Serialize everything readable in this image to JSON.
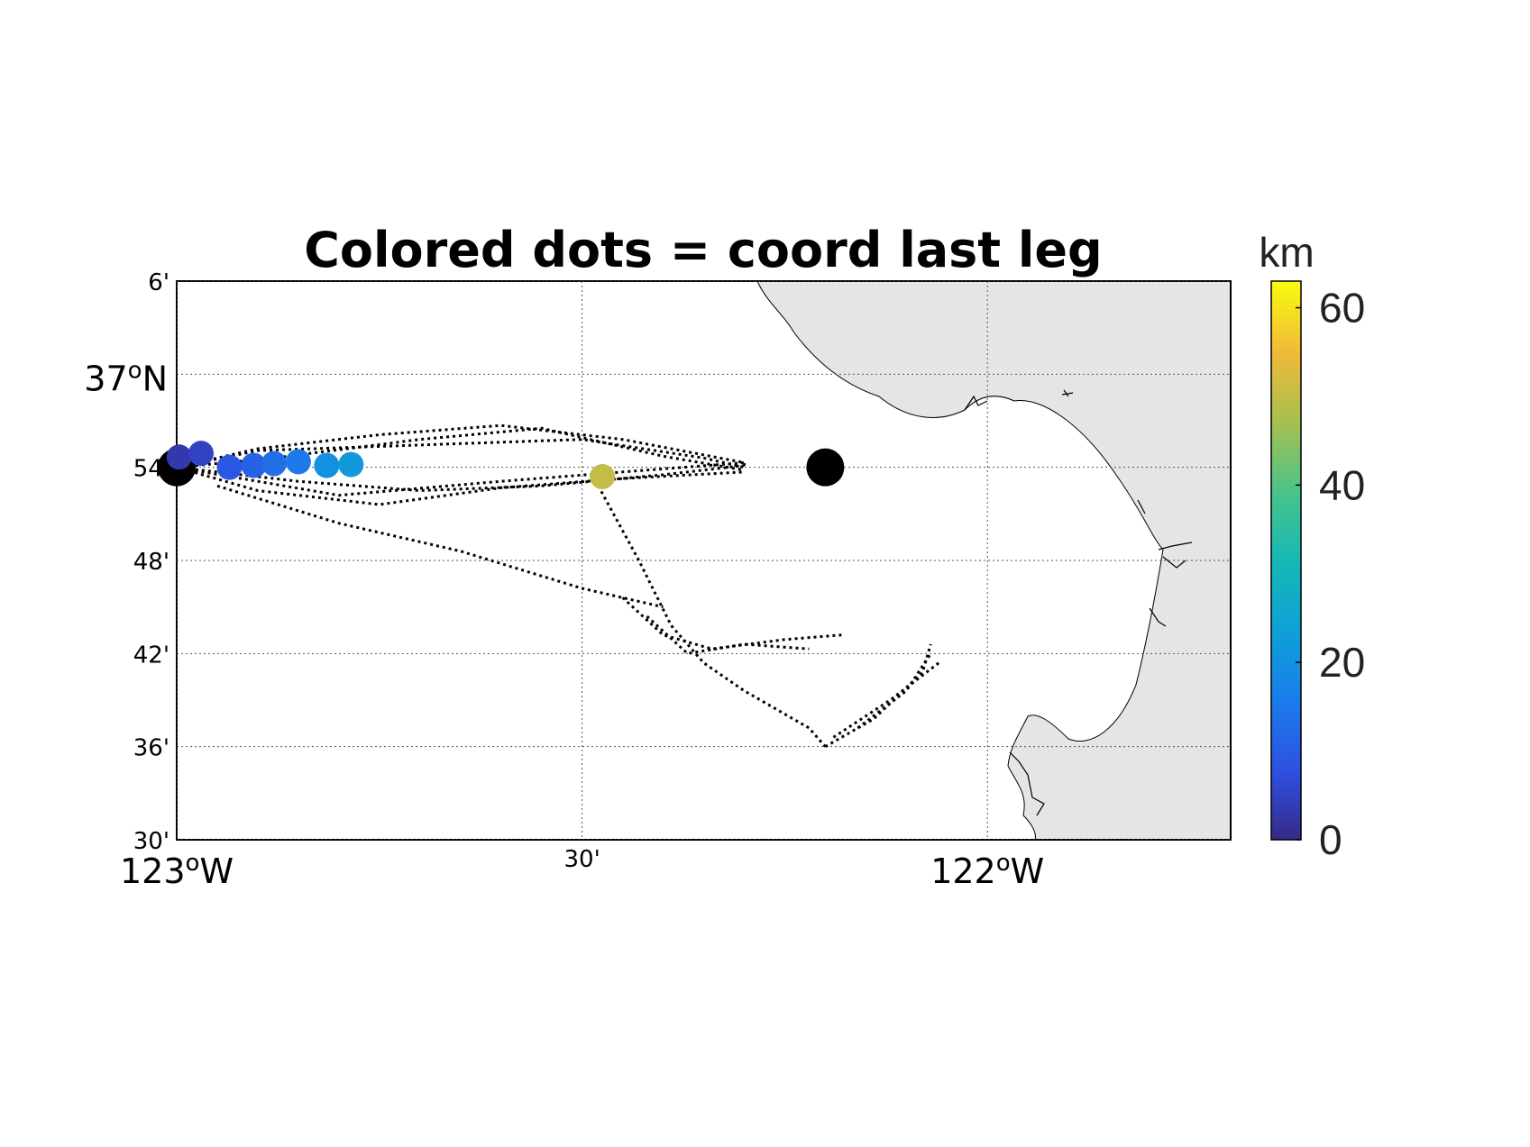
{
  "title": "Colored dots = coord last leg",
  "map": {
    "lon_range": [
      -123.0,
      -121.7
    ],
    "lat_range": [
      36.5,
      37.1
    ],
    "y_ticks": [
      {
        "lat": 37.1,
        "label": "6'",
        "major": false
      },
      {
        "lat": 37.0,
        "label": "37",
        "deg": "o",
        "suffix": "N",
        "major": true
      },
      {
        "lat": 36.9,
        "label": "54'",
        "major": false
      },
      {
        "lat": 36.8,
        "label": "48'",
        "major": false
      },
      {
        "lat": 36.7,
        "label": "42'",
        "major": false
      },
      {
        "lat": 36.6,
        "label": "36'",
        "major": false
      },
      {
        "lat": 36.5,
        "label": "30'",
        "major": false
      }
    ],
    "x_ticks": [
      {
        "lon": -123.0,
        "label": "123",
        "deg": "o",
        "suffix": "W",
        "major": true
      },
      {
        "lon": -122.5,
        "label": "30'",
        "major": false
      },
      {
        "lon": -122.0,
        "label": "122",
        "deg": "o",
        "suffix": "W",
        "major": true
      }
    ],
    "land_color": "#e5e5e5",
    "track_color": "#000000",
    "target_point": {
      "lon": -122.2,
      "lat": 36.9,
      "color": "#000000"
    },
    "start_point": {
      "lon": -123.0,
      "lat": 36.9,
      "color": "#000000"
    }
  },
  "chart_data": {
    "type": "scatter",
    "title": "Colored dots = coord last leg",
    "color_variable": "km",
    "points": [
      {
        "lon": -122.997,
        "lat": 36.911,
        "km": 3
      },
      {
        "lon": -122.97,
        "lat": 36.915,
        "km": 5
      },
      {
        "lon": -122.935,
        "lat": 36.9,
        "km": 9
      },
      {
        "lon": -122.905,
        "lat": 36.902,
        "km": 11
      },
      {
        "lon": -122.88,
        "lat": 36.904,
        "km": 13
      },
      {
        "lon": -122.85,
        "lat": 36.906,
        "km": 15
      },
      {
        "lon": -122.815,
        "lat": 36.902,
        "km": 20
      },
      {
        "lon": -122.785,
        "lat": 36.903,
        "km": 22
      },
      {
        "lon": -122.475,
        "lat": 36.89,
        "km": 50
      }
    ],
    "colorbar": {
      "label": "km",
      "range": [
        0,
        63
      ],
      "ticks": [
        0,
        20,
        40,
        60
      ],
      "colormap": "parula"
    }
  }
}
